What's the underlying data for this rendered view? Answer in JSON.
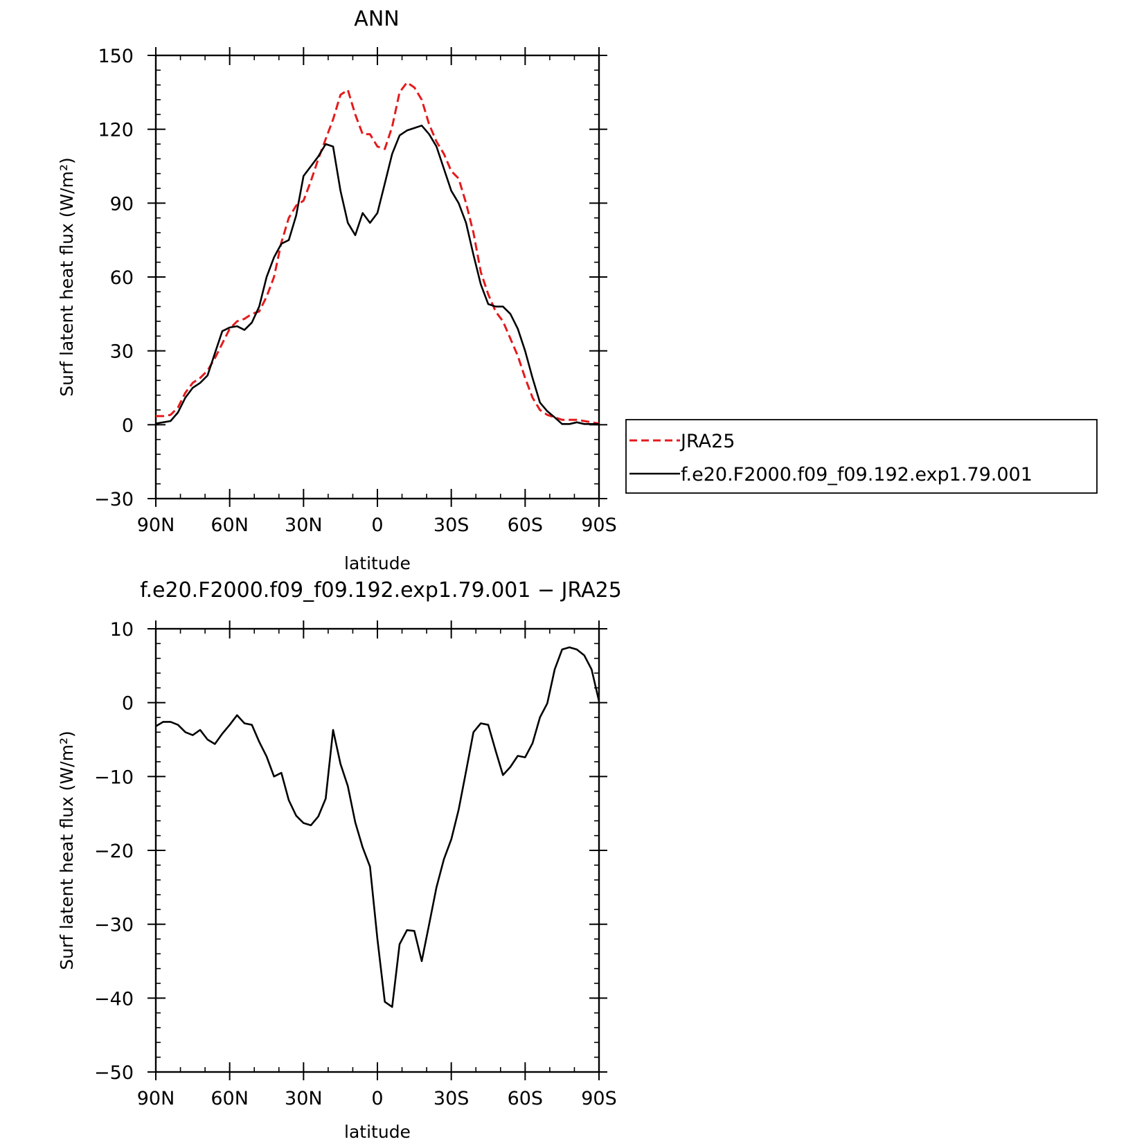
{
  "chart_data": [
    {
      "type": "line",
      "title": "ANN",
      "xlabel": "latitude",
      "ylabel": "Surf latent heat flux (W/m²)",
      "xlim": [
        90,
        -90
      ],
      "ylim": [
        -30,
        150
      ],
      "xticks": [
        90,
        60,
        30,
        0,
        -30,
        -60,
        -90
      ],
      "xtick_labels": [
        "90N",
        "60N",
        "30N",
        "0",
        "30S",
        "60S",
        "90S"
      ],
      "yticks": [
        -30,
        0,
        30,
        60,
        90,
        120,
        150
      ],
      "ytick_labels": [
        "−30",
        "0",
        "30",
        "60",
        "90",
        "120",
        "150"
      ],
      "legend_position": "right",
      "series": [
        {
          "name": "JRA25",
          "color": "#e41a1c",
          "dash": "dashed",
          "x": [
            90,
            87,
            84,
            81,
            78,
            75,
            72,
            69,
            66,
            63,
            60,
            57,
            54,
            51,
            48,
            45,
            42,
            39,
            36,
            33,
            30,
            27,
            24,
            21,
            18,
            15,
            12,
            9,
            6,
            3,
            0,
            -3,
            -6,
            -9,
            -12,
            -15,
            -18,
            -21,
            -24,
            -27,
            -30,
            -33,
            -36,
            -39,
            -42,
            -45,
            -48,
            -51,
            -54,
            -57,
            -60,
            -63,
            -66,
            -69,
            -72,
            -75,
            -78,
            -81,
            -84,
            -87,
            -90
          ],
          "y": [
            3.5,
            3.5,
            4,
            7,
            13,
            17,
            19,
            22,
            27,
            33,
            39,
            42,
            43,
            45,
            46,
            52,
            60,
            74,
            84,
            89,
            91,
            99,
            108,
            116,
            124,
            134,
            136,
            126,
            118,
            118,
            113,
            112,
            121,
            135,
            139,
            137,
            132,
            122,
            115,
            110,
            103,
            100,
            90,
            78,
            62,
            53,
            46,
            42,
            35,
            28,
            19,
            11,
            6,
            4,
            3,
            2,
            2,
            2,
            1.5,
            1,
            0.5
          ]
        },
        {
          "name": "f.e20.F2000.f09_f09.192.exp1.79.001",
          "color": "#000000",
          "dash": "solid",
          "x": [
            90,
            87,
            84,
            81,
            78,
            75,
            72,
            69,
            66,
            63,
            60,
            57,
            54,
            51,
            48,
            45,
            42,
            39,
            36,
            33,
            30,
            27,
            24,
            21,
            18,
            15,
            12,
            9,
            6,
            3,
            0,
            -3,
            -6,
            -9,
            -12,
            -15,
            -18,
            -21,
            -24,
            -27,
            -30,
            -33,
            -36,
            -39,
            -42,
            -45,
            -48,
            -51,
            -54,
            -57,
            -60,
            -63,
            -66,
            -69,
            -72,
            -75,
            -78,
            -81,
            -84,
            -87,
            -90
          ],
          "y": [
            0.5,
            1,
            1.5,
            5,
            11,
            15,
            17,
            20,
            29,
            38,
            39.5,
            40,
            38.5,
            41.5,
            48,
            60,
            68,
            73.5,
            75,
            85,
            101,
            105,
            109,
            114,
            113,
            95,
            82,
            77,
            86,
            82,
            86,
            98,
            110,
            117.5,
            119.5,
            120.5,
            121.5,
            118,
            113,
            104,
            95,
            90,
            82,
            69,
            57,
            49,
            48,
            48,
            45,
            39,
            30,
            19,
            9,
            5.5,
            3,
            0.3,
            0.3,
            1,
            0.3,
            0.3,
            0.3
          ]
        }
      ]
    },
    {
      "type": "line",
      "title": "f.e20.F2000.f09_f09.192.exp1.79.001 − JRA25",
      "xlabel": "latitude",
      "ylabel": "Surf latent heat flux (W/m²)",
      "xlim": [
        90,
        -90
      ],
      "ylim": [
        -50,
        10
      ],
      "xticks": [
        90,
        60,
        30,
        0,
        -30,
        -60,
        -90
      ],
      "xtick_labels": [
        "90N",
        "60N",
        "30N",
        "0",
        "30S",
        "60S",
        "90S"
      ],
      "yticks": [
        -50,
        -40,
        -30,
        -20,
        -10,
        0,
        10
      ],
      "ytick_labels": [
        "−50",
        "−40",
        "−30",
        "−20",
        "−10",
        "0",
        "10"
      ],
      "series": [
        {
          "color": "#000000",
          "dash": "solid",
          "x": [
            90,
            87,
            84,
            81,
            78,
            75,
            72,
            69,
            66,
            63,
            60,
            57,
            54,
            51,
            48,
            45,
            42,
            39,
            36,
            33,
            30,
            27,
            24,
            21,
            18,
            15,
            12,
            9,
            6,
            3,
            0,
            -3,
            -6,
            -9,
            -12,
            -15,
            -18,
            -21,
            -24,
            -27,
            -30,
            -33,
            -36,
            -39,
            -42,
            -45,
            -48,
            -51,
            -54,
            -57,
            -60,
            -63,
            -66,
            -69,
            -72,
            -75,
            -78,
            -81,
            -84,
            -87,
            -90
          ],
          "y": [
            -3.2,
            -2.6,
            -2.6,
            -3,
            -4,
            -4.4,
            -3.7,
            -5,
            -5.6,
            -4.2,
            -3,
            -1.7,
            -2.8,
            -3,
            -5.3,
            -7.3,
            -10,
            -9.5,
            -13.2,
            -15.3,
            -16.3,
            -16.6,
            -15.4,
            -13,
            -3.7,
            -8.3,
            -11.3,
            -16.2,
            -19.6,
            -22.2,
            -32,
            -40.5,
            -41.2,
            -32.7,
            -30.8,
            -30.9,
            -35,
            -30,
            -25,
            -21.2,
            -18.5,
            -14.5,
            -9.3,
            -4,
            -2.8,
            -3,
            -6.5,
            -9.8,
            -8.7,
            -7.2,
            -7.4,
            -5.5,
            -2,
            -0.1,
            4.5,
            7.2,
            7.5,
            7.2,
            6.4,
            4.5,
            0.2
          ]
        }
      ]
    }
  ]
}
